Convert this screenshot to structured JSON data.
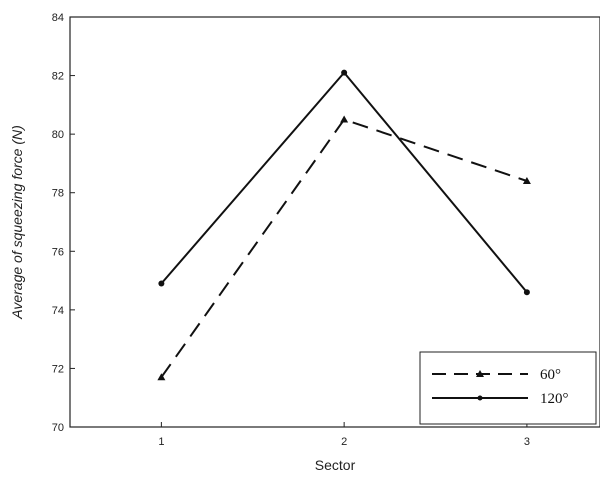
{
  "chart_data": {
    "type": "line",
    "xlabel": "Sector",
    "ylabel": "Average of squeezing force (N)",
    "x": [
      1,
      2,
      3
    ],
    "xlim": [
      0.5,
      3.4
    ],
    "ylim": [
      70,
      84
    ],
    "yticks": [
      70,
      72,
      74,
      76,
      78,
      80,
      82,
      84
    ],
    "xticks": [
      1,
      2,
      3
    ],
    "grid": false,
    "legend_position": "bottom-right",
    "series": [
      {
        "name": "60°",
        "values": [
          71.7,
          80.5,
          78.4
        ],
        "style": "dashed",
        "marker": "triangle",
        "color": "#111111"
      },
      {
        "name": "120°",
        "values": [
          74.9,
          82.1,
          74.6
        ],
        "style": "solid",
        "marker": "circle",
        "color": "#111111"
      }
    ]
  }
}
